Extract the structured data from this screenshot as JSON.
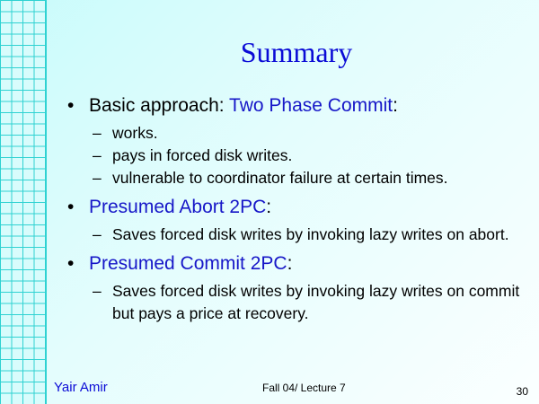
{
  "slide": {
    "title": "Summary",
    "bullets": [
      {
        "label": "Basic approach: ",
        "highlight": "Two Phase Commit",
        "suffix": ":",
        "subs": [
          "works.",
          "pays in forced disk writes.",
          "vulnerable to coordinator failure at certain times."
        ]
      },
      {
        "label": "",
        "highlight": "Presumed Abort 2PC",
        "suffix": ":",
        "subs": [
          "Saves forced disk writes by invoking lazy writes on abort."
        ]
      },
      {
        "label": "",
        "highlight": "Presumed Commit 2PC",
        "suffix": ":",
        "subs": [
          "Saves forced disk writes by invoking lazy writes on commit but pays a price at recovery."
        ]
      }
    ]
  },
  "footer": {
    "author": "Yair Amir",
    "course": "Fall 04/ Lecture 7",
    "page": "30"
  },
  "colors": {
    "title": "#0b0bd6",
    "highlight": "#1717c8",
    "grid": "#2fd2d2",
    "background": "#d8fcfc"
  }
}
